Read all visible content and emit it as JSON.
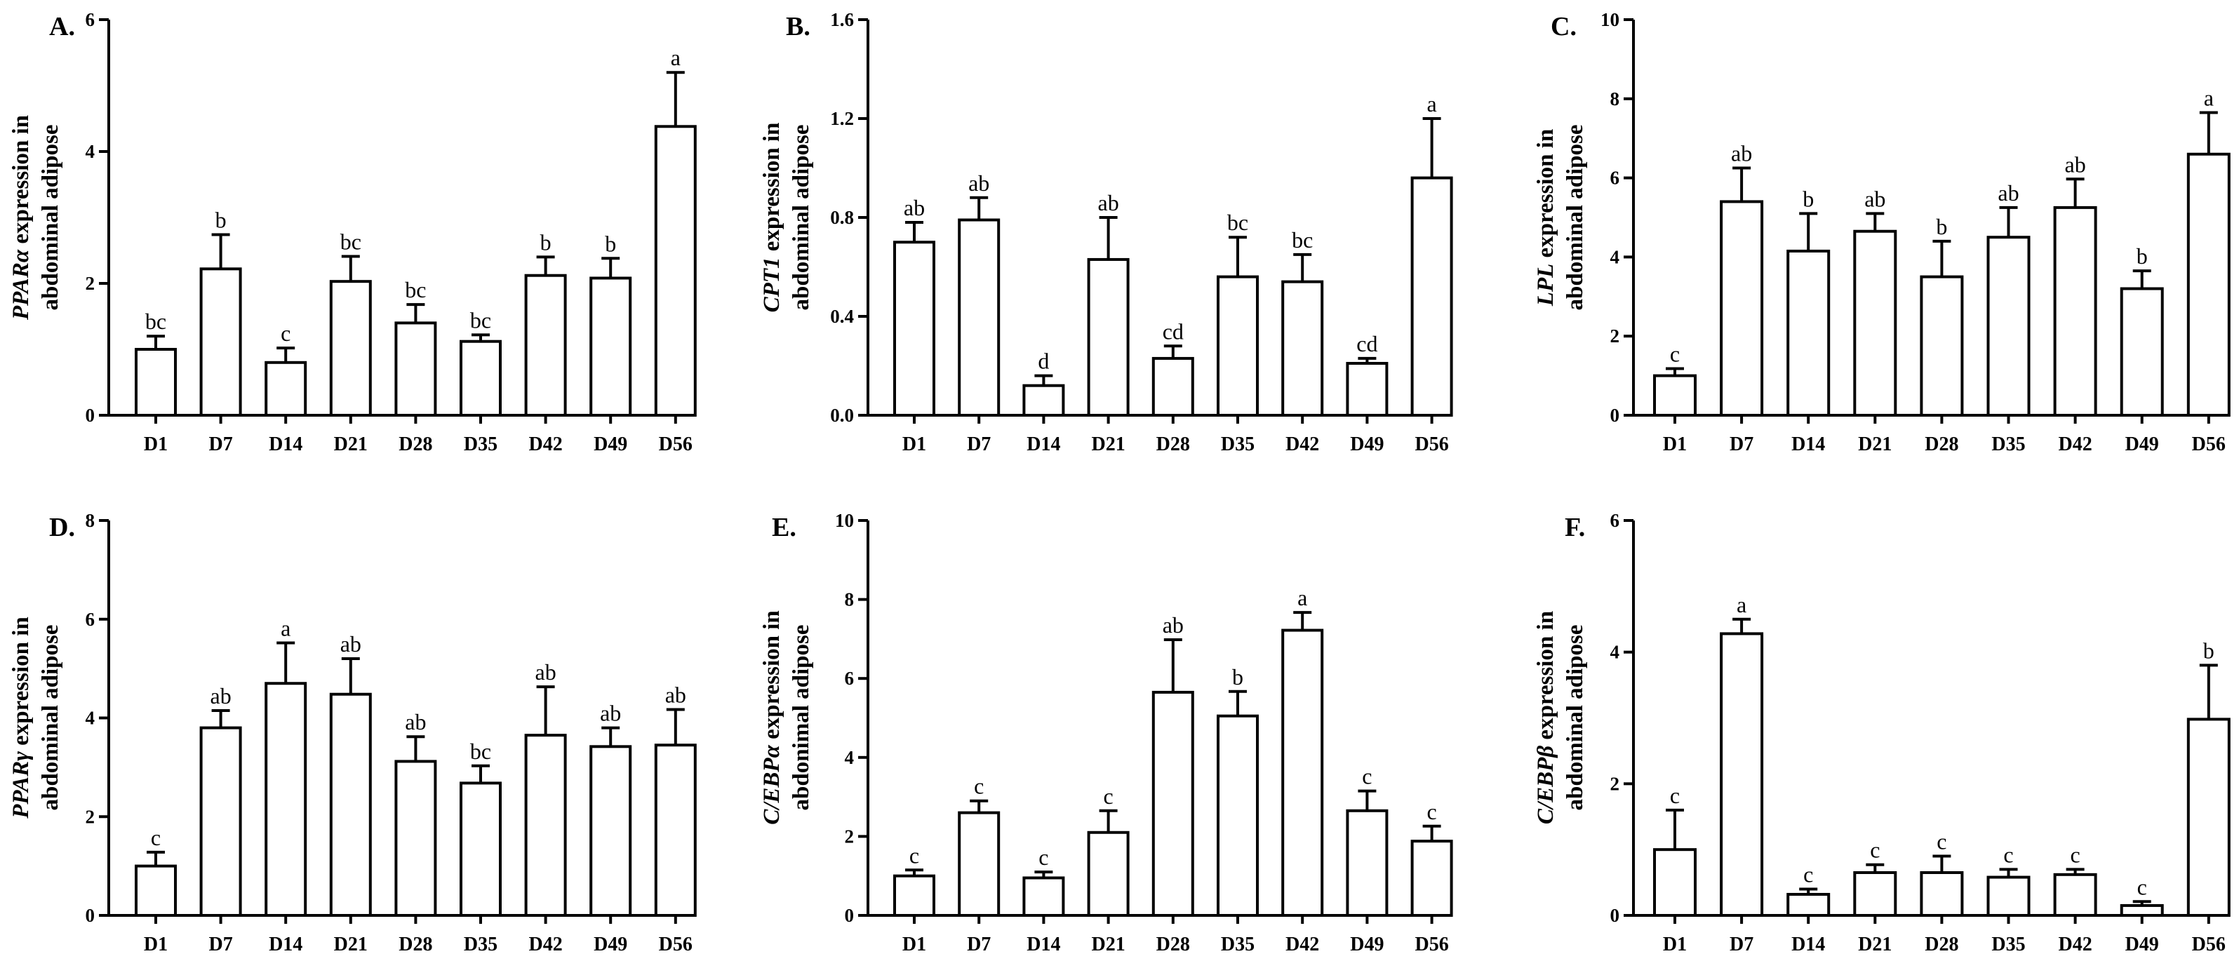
{
  "panels": [
    {
      "letter": "A.",
      "gene": "PPARα",
      "ylabel_line1_rest": " expression in",
      "ylabel_line2": "abdominal adipose",
      "chart_data": {
        "type": "bar",
        "categories": [
          "D1",
          "D7",
          "D14",
          "D21",
          "D28",
          "D35",
          "D42",
          "D49",
          "D56"
        ],
        "values": [
          1.0,
          2.22,
          0.8,
          2.03,
          1.4,
          1.12,
          2.12,
          2.08,
          4.38
        ],
        "errors": [
          0.2,
          0.52,
          0.22,
          0.38,
          0.28,
          0.1,
          0.28,
          0.3,
          0.82
        ],
        "significance": [
          "bc",
          "b",
          "c",
          "bc",
          "bc",
          "bc",
          "b",
          "b",
          "a"
        ],
        "ylim": [
          0,
          6
        ],
        "yticks": [
          0,
          2,
          4,
          6
        ],
        "ytick_labels": [
          "0",
          "2",
          "4",
          "6"
        ]
      }
    },
    {
      "letter": "B.",
      "gene": "CPT1",
      "ylabel_line1_rest": " expression in",
      "ylabel_line2": "abdominal adipose",
      "chart_data": {
        "type": "bar",
        "categories": [
          "D1",
          "D7",
          "D14",
          "D21",
          "D28",
          "D35",
          "D42",
          "D49",
          "D56"
        ],
        "values": [
          0.7,
          0.79,
          0.12,
          0.63,
          0.23,
          0.56,
          0.54,
          0.21,
          0.96
        ],
        "errors": [
          0.08,
          0.09,
          0.04,
          0.17,
          0.05,
          0.16,
          0.11,
          0.02,
          0.24
        ],
        "significance": [
          "ab",
          "ab",
          "d",
          "ab",
          "cd",
          "bc",
          "bc",
          "cd",
          "a"
        ],
        "ylim": [
          0,
          1.6
        ],
        "yticks": [
          0,
          0.4,
          0.8,
          1.2,
          1.6
        ],
        "ytick_labels": [
          "0.0",
          "0.4",
          "0.8",
          "1.2",
          "1.6"
        ]
      }
    },
    {
      "letter": "C.",
      "gene": "LPL",
      "ylabel_line1_rest": " expression in",
      "ylabel_line2": "abdominal adipose",
      "chart_data": {
        "type": "bar",
        "categories": [
          "D1",
          "D7",
          "D14",
          "D21",
          "D28",
          "D35",
          "D42",
          "D49",
          "D56"
        ],
        "values": [
          1.0,
          5.4,
          4.15,
          4.65,
          3.5,
          4.5,
          5.25,
          3.2,
          6.6
        ],
        "errors": [
          0.18,
          0.85,
          0.95,
          0.45,
          0.9,
          0.75,
          0.72,
          0.45,
          1.05
        ],
        "significance": [
          "c",
          "ab",
          "b",
          "ab",
          "b",
          "ab",
          "ab",
          "b",
          "a"
        ],
        "ylim": [
          0,
          10
        ],
        "yticks": [
          0,
          2,
          4,
          6,
          8,
          10
        ],
        "ytick_labels": [
          "0",
          "2",
          "4",
          "6",
          "8",
          "10"
        ]
      }
    },
    {
      "letter": "D.",
      "gene": "PPARγ",
      "ylabel_line1_rest": " expression in",
      "ylabel_line2": "abdominal adipose",
      "chart_data": {
        "type": "bar",
        "categories": [
          "D1",
          "D7",
          "D14",
          "D21",
          "D28",
          "D35",
          "D42",
          "D49",
          "D56"
        ],
        "values": [
          1.0,
          3.8,
          4.7,
          4.48,
          3.12,
          2.68,
          3.65,
          3.42,
          3.45
        ],
        "errors": [
          0.28,
          0.35,
          0.82,
          0.72,
          0.5,
          0.35,
          0.98,
          0.38,
          0.72
        ],
        "significance": [
          "c",
          "ab",
          "a",
          "ab",
          "ab",
          "bc",
          "ab",
          "ab",
          "ab"
        ],
        "ylim": [
          0,
          8
        ],
        "yticks": [
          0,
          2,
          4,
          6,
          8
        ],
        "ytick_labels": [
          "0",
          "2",
          "4",
          "6",
          "8"
        ]
      }
    },
    {
      "letter": "E.",
      "gene": "C/EBPα",
      "ylabel_line1_rest": " expression in",
      "ylabel_line2": "abdonimal adipose",
      "chart_data": {
        "type": "bar",
        "categories": [
          "D1",
          "D7",
          "D14",
          "D21",
          "D28",
          "D35",
          "D42",
          "D49",
          "D56"
        ],
        "values": [
          1.0,
          2.6,
          0.95,
          2.1,
          5.65,
          5.05,
          7.22,
          2.65,
          1.88
        ],
        "errors": [
          0.15,
          0.3,
          0.15,
          0.55,
          1.33,
          0.62,
          0.45,
          0.5,
          0.38
        ],
        "significance": [
          "c",
          "c",
          "c",
          "c",
          "ab",
          "b",
          "a",
          "c",
          "c"
        ],
        "ylim": [
          0,
          10
        ],
        "yticks": [
          0,
          2,
          4,
          6,
          8,
          10
        ],
        "ytick_labels": [
          "0",
          "2",
          "4",
          "6",
          "8",
          "10"
        ]
      }
    },
    {
      "letter": "F.",
      "gene": "C/EBPβ",
      "ylabel_line1_rest": " expression in",
      "ylabel_line2": "abdominal adipose",
      "chart_data": {
        "type": "bar",
        "categories": [
          "D1",
          "D7",
          "D14",
          "D21",
          "D28",
          "D35",
          "D42",
          "D49",
          "D56"
        ],
        "values": [
          1.0,
          4.28,
          0.32,
          0.65,
          0.65,
          0.58,
          0.62,
          0.15,
          2.98
        ],
        "errors": [
          0.6,
          0.22,
          0.08,
          0.12,
          0.25,
          0.12,
          0.08,
          0.06,
          0.82
        ],
        "significance": [
          "c",
          "a",
          "c",
          "c",
          "c",
          "c",
          "c",
          "c",
          "b"
        ],
        "ylim": [
          0,
          6
        ],
        "yticks": [
          0,
          2,
          4,
          6
        ],
        "ytick_labels": [
          "0",
          "2",
          "4",
          "6"
        ]
      }
    }
  ]
}
